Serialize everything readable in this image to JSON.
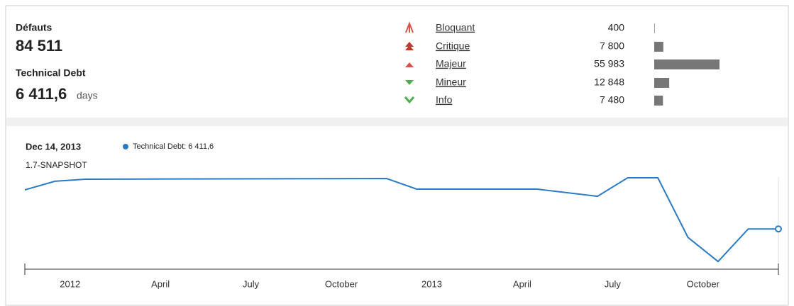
{
  "header": {
    "defects_label": "Défauts",
    "defects_value": "84 511",
    "debt_label": "Technical Debt",
    "debt_value": "6 411,6",
    "debt_unit": "days"
  },
  "severities": {
    "names": [
      "Bloquant",
      "Critique",
      "Majeur",
      "Mineur",
      "Info"
    ],
    "values": [
      400,
      7800,
      55983,
      12848,
      7480
    ],
    "value_labels": [
      "400",
      "7 800",
      "55 983",
      "12 848",
      "7 480"
    ],
    "color": "#777777"
  },
  "chart_data": {
    "type": "line",
    "date": "Dec 14, 2013",
    "version": "1.7-SNAPSHOT",
    "legend_text": "Technical Debt: 6 411,6",
    "x": [
      "2011-11",
      "2011-12",
      "2012-01",
      "2012-11",
      "2012-12",
      "2013-04",
      "2013-06",
      "2013-07",
      "2013-08",
      "2013-09",
      "2013-10",
      "2013-11",
      "2013-12"
    ],
    "series": [
      {
        "name": "Technical Debt",
        "color": "#2b7bc4",
        "values": [
          7016,
          7150,
          7182,
          7193,
          7028,
          7028,
          6918,
          7204,
          7204,
          6280,
          5906,
          6412,
          6411.6
        ]
      }
    ],
    "xlim": [
      "2011-11",
      "2013-12"
    ],
    "ylim": [
      5700,
      7325
    ],
    "xticks": [
      {
        "value": "2012-01",
        "label": "2012"
      },
      {
        "value": "2012-04",
        "label": "April"
      },
      {
        "value": "2012-07",
        "label": "July"
      },
      {
        "value": "2012-10",
        "label": "October"
      },
      {
        "value": "2013-01",
        "label": "2013"
      },
      {
        "value": "2013-04",
        "label": "April"
      },
      {
        "value": "2013-07",
        "label": "July"
      },
      {
        "value": "2013-10",
        "label": "October"
      }
    ]
  }
}
